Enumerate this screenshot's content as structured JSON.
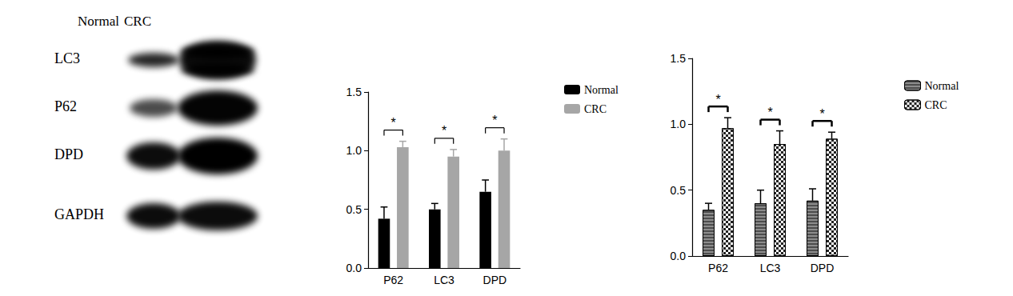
{
  "blot": {
    "lanes": [
      "Normal",
      "CRC"
    ],
    "rows": [
      "LC3",
      "P62",
      "DPD",
      "GAPDH"
    ]
  },
  "chart_data": [
    {
      "type": "bar",
      "categories": [
        "P62",
        "LC3",
        "DPD"
      ],
      "series": [
        {
          "name": "Normal",
          "color": "#000000",
          "values": [
            0.42,
            0.5,
            0.65
          ],
          "errors": [
            0.1,
            0.05,
            0.1
          ]
        },
        {
          "name": "CRC",
          "color": "#a6a6a6",
          "values": [
            1.03,
            0.95,
            1.0
          ],
          "errors": [
            0.05,
            0.06,
            0.1
          ]
        }
      ],
      "ylim": [
        0,
        1.5
      ],
      "yticks": [
        {
          "value": 0,
          "label": "0.0"
        },
        {
          "value": 0.5,
          "label": "0.5"
        },
        {
          "value": 1,
          "label": "1.0"
        },
        {
          "value": 1.5,
          "label": "1.5"
        }
      ],
      "annotations": [
        {
          "category": "P62",
          "text": "*"
        },
        {
          "category": "LC3",
          "text": "*"
        },
        {
          "category": "DPD",
          "text": "*"
        }
      ],
      "legend": "top-right",
      "grid": false
    },
    {
      "type": "bar",
      "categories": [
        "P62",
        "LC3",
        "DPD"
      ],
      "series": [
        {
          "name": "Normal",
          "color": "#8c8c8c",
          "values": [
            0.35,
            0.4,
            0.42
          ],
          "errors": [
            0.05,
            0.1,
            0.09
          ]
        },
        {
          "name": "CRC",
          "color": "#ffffff",
          "values": [
            0.97,
            0.85,
            0.89
          ],
          "errors": [
            0.08,
            0.1,
            0.05
          ]
        }
      ],
      "ylim": [
        0,
        1.5
      ],
      "yticks": [
        {
          "value": 0,
          "label": "0.0"
        },
        {
          "value": 0.5,
          "label": "0.5"
        },
        {
          "value": 1,
          "label": "1.0"
        },
        {
          "value": 1.5,
          "label": "1.5"
        }
      ],
      "annotations": [
        {
          "category": "P62",
          "text": "*"
        },
        {
          "category": "LC3",
          "text": "*"
        },
        {
          "category": "DPD",
          "text": "*"
        }
      ],
      "legend": "top-right",
      "grid": false
    }
  ]
}
